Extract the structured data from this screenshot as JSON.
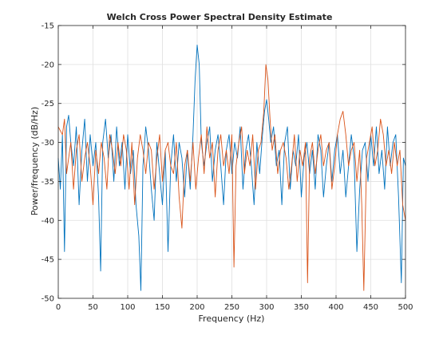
{
  "chart_data": {
    "type": "line",
    "title": "Welch Cross Power Spectral Density Estimate",
    "xlabel": "Frequency (Hz)",
    "ylabel": "Power/frequency (dB/Hz)",
    "xlim": [
      0,
      500
    ],
    "ylim": [
      -50,
      -15
    ],
    "xticks": [
      "0",
      "50",
      "100",
      "150",
      "200",
      "250",
      "300",
      "350",
      "400",
      "450",
      "500"
    ],
    "yticks": [
      "-50",
      "-45",
      "-40",
      "-35",
      "-30",
      "-25",
      "-20",
      "-15"
    ],
    "grid": true,
    "box": true,
    "series": [
      {
        "color": "#0072BD",
        "x": [
          0,
          3,
          6,
          9,
          12,
          15,
          18,
          22,
          26,
          30,
          34,
          38,
          42,
          46,
          50,
          54,
          58,
          61,
          64,
          68,
          72,
          76,
          80,
          84,
          88,
          92,
          96,
          100,
          104,
          108,
          112,
          116,
          119,
          122,
          126,
          130,
          134,
          138,
          142,
          146,
          150,
          154,
          158,
          162,
          166,
          170,
          174,
          178,
          182,
          186,
          190,
          194,
          197,
          200,
          203,
          206,
          210,
          214,
          218,
          222,
          226,
          230,
          234,
          238,
          242,
          246,
          250,
          254,
          258,
          262,
          266,
          270,
          274,
          278,
          282,
          286,
          290,
          294,
          297,
          300,
          303,
          306,
          310,
          314,
          318,
          322,
          326,
          330,
          334,
          338,
          342,
          346,
          350,
          354,
          358,
          362,
          366,
          370,
          374,
          378,
          382,
          386,
          390,
          394,
          398,
          402,
          406,
          410,
          414,
          418,
          422,
          426,
          430,
          434,
          438,
          442,
          446,
          450,
          454,
          458,
          462,
          466,
          470,
          474,
          478,
          482,
          486,
          490,
          494,
          497,
          500
        ],
        "y": [
          -32,
          -36,
          -29,
          -44,
          -28,
          -26.5,
          -30,
          -33,
          -28,
          -38,
          -31,
          -27,
          -35,
          -29,
          -33,
          -30,
          -37,
          -46.5,
          -30,
          -27,
          -32,
          -29,
          -35,
          -28,
          -33,
          -30,
          -36,
          -29,
          -34,
          -31,
          -38,
          -42,
          -49,
          -33,
          -28,
          -31,
          -36,
          -40,
          -30,
          -34,
          -38,
          -31,
          -44,
          -33,
          -29,
          -35,
          -30,
          -32,
          -37,
          -31,
          -36,
          -29,
          -22,
          -17.5,
          -20,
          -30,
          -33,
          -30,
          -28,
          -35,
          -31,
          -29,
          -33,
          -38,
          -31,
          -29,
          -34,
          -30,
          -32,
          -28,
          -36,
          -31,
          -29,
          -33,
          -38,
          -30,
          -34,
          -29,
          -26,
          -24.5,
          -27,
          -30,
          -28,
          -33,
          -31,
          -38,
          -30,
          -28,
          -36,
          -31,
          -33,
          -29,
          -37,
          -32,
          -30,
          -34,
          -31,
          -36,
          -29,
          -31,
          -37,
          -33,
          -30,
          -35,
          -31,
          -29,
          -34,
          -31,
          -37,
          -33,
          -29,
          -32,
          -44,
          -36,
          -31,
          -30,
          -35,
          -29,
          -33,
          -28,
          -34,
          -31,
          -36,
          -28,
          -33,
          -30,
          -29,
          -37,
          -48,
          -32,
          -33
        ]
      },
      {
        "color": "#D95319",
        "x": [
          0,
          3,
          6,
          9,
          12,
          15,
          18,
          22,
          26,
          30,
          34,
          38,
          42,
          46,
          50,
          54,
          58,
          62,
          66,
          70,
          74,
          78,
          82,
          86,
          90,
          94,
          98,
          102,
          106,
          110,
          114,
          118,
          122,
          126,
          130,
          134,
          138,
          142,
          146,
          150,
          154,
          158,
          162,
          166,
          170,
          174,
          178,
          182,
          186,
          190,
          194,
          198,
          202,
          206,
          210,
          214,
          218,
          222,
          226,
          230,
          234,
          238,
          242,
          246,
          250,
          253,
          256,
          260,
          264,
          268,
          272,
          276,
          280,
          284,
          288,
          292,
          296,
          299,
          302,
          305,
          308,
          312,
          316,
          320,
          324,
          328,
          332,
          336,
          340,
          344,
          348,
          352,
          356,
          359,
          362,
          366,
          370,
          374,
          378,
          382,
          386,
          390,
          394,
          398,
          402,
          406,
          410,
          414,
          418,
          422,
          426,
          430,
          434,
          437,
          440,
          444,
          448,
          452,
          456,
          460,
          464,
          468,
          472,
          476,
          480,
          484,
          488,
          492,
          496,
          500
        ],
        "y": [
          -28,
          -28.5,
          -29,
          -27,
          -34,
          -32,
          -30,
          -36,
          -31,
          -29,
          -35,
          -32,
          -30,
          -33,
          -38,
          -31,
          -34,
          -30,
          -32,
          -36,
          -29,
          -31,
          -34,
          -30,
          -33,
          -29,
          -31,
          -36,
          -30,
          -38,
          -32,
          -29,
          -31,
          -34,
          -30,
          -31,
          -36,
          -32,
          -29,
          -35,
          -31,
          -30,
          -33,
          -34,
          -30,
          -37,
          -41,
          -33,
          -31,
          -35,
          -30,
          -36,
          -32,
          -29,
          -34,
          -28,
          -32,
          -30,
          -37,
          -31,
          -29,
          -33,
          -31,
          -34,
          -29,
          -46,
          -33,
          -30,
          -28,
          -34,
          -31,
          -33,
          -29,
          -36,
          -31,
          -30,
          -26,
          -20,
          -22,
          -27,
          -31,
          -29,
          -34,
          -31,
          -30,
          -32,
          -36,
          -33,
          -29,
          -35,
          -31,
          -33,
          -30,
          -48,
          -32,
          -30,
          -34,
          -31,
          -29,
          -33,
          -31,
          -30,
          -36,
          -33,
          -29,
          -27,
          -26,
          -29,
          -33,
          -31,
          -30,
          -35,
          -31,
          -38,
          -49,
          -32,
          -30,
          -28,
          -33,
          -31,
          -27,
          -29,
          -33,
          -31,
          -34,
          -30,
          -33,
          -31,
          -38,
          -40
        ]
      }
    ]
  }
}
